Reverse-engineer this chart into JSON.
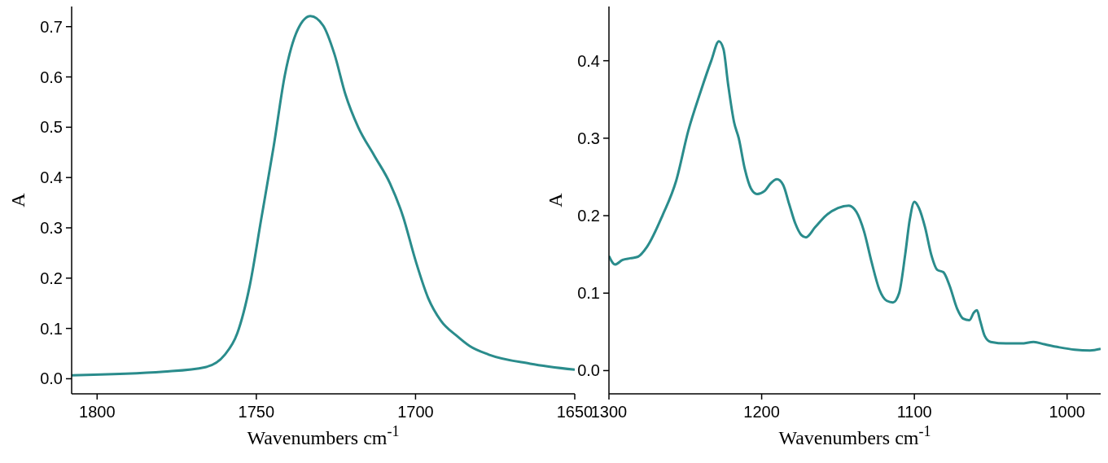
{
  "chart_data": [
    {
      "type": "line",
      "xlabel": "Wavenumbers cm$^{-1}$",
      "ylabel": "A",
      "xlim": [
        1808,
        1650
      ],
      "xticks": [
        1800,
        1750,
        1700,
        1650
      ],
      "ylim": [
        -0.03,
        0.74
      ],
      "yticks": [
        {
          "value": 0,
          "label": "0.0"
        },
        0.1,
        0.2,
        0.3,
        0.4,
        0.5,
        0.6,
        0.7
      ],
      "series": [
        {
          "color": "#2a8c8c",
          "x": [
            1808,
            1779,
            1766,
            1760,
            1756,
            1752,
            1748.5,
            1744.6,
            1741,
            1737,
            1733,
            1729,
            1725.5,
            1722,
            1718,
            1713,
            1708,
            1704,
            1700,
            1696,
            1692,
            1687,
            1683,
            1677,
            1664,
            1650
          ],
          "values": [
            0.007,
            0.014,
            0.023,
            0.047,
            0.09,
            0.187,
            0.316,
            0.46,
            0.605,
            0.694,
            0.721,
            0.702,
            0.646,
            0.565,
            0.5,
            0.444,
            0.388,
            0.324,
            0.235,
            0.16,
            0.115,
            0.085,
            0.065,
            0.048,
            0.03,
            0.018
          ]
        }
      ]
    },
    {
      "type": "line",
      "xlabel": "Wavenumbers cm$^{-1}$",
      "ylabel": "A",
      "xlim": [
        1300,
        978
      ],
      "xticks": [
        1300,
        1200,
        1100,
        1000
      ],
      "ylim": [
        -0.03,
        0.47
      ],
      "yticks": [
        {
          "value": 0,
          "label": "0.0"
        },
        0.1,
        0.2,
        0.3,
        0.4
      ],
      "series": [
        {
          "color": "#2a8c8c",
          "x": [
            1300,
            1296,
            1291,
            1286,
            1281,
            1275,
            1265,
            1256,
            1248,
            1240,
            1233,
            1228,
            1225,
            1222,
            1218,
            1215,
            1211,
            1207,
            1203,
            1198,
            1194,
            1190,
            1186,
            1182,
            1178,
            1174,
            1171,
            1165,
            1158,
            1150,
            1143,
            1138,
            1133,
            1128,
            1123,
            1118,
            1114,
            1110,
            1106,
            1103,
            1100,
            1097,
            1093,
            1089,
            1085,
            1081,
            1077,
            1072,
            1068,
            1064,
            1061,
            1059,
            1057,
            1054,
            1050,
            1040,
            1030,
            1022,
            1015,
            1005,
            995,
            985,
            978
          ],
          "values": [
            0.148,
            0.137,
            0.143,
            0.145,
            0.147,
            0.16,
            0.2,
            0.245,
            0.31,
            0.36,
            0.4,
            0.425,
            0.415,
            0.37,
            0.32,
            0.3,
            0.26,
            0.235,
            0.228,
            0.232,
            0.242,
            0.247,
            0.24,
            0.215,
            0.19,
            0.175,
            0.172,
            0.185,
            0.2,
            0.21,
            0.213,
            0.205,
            0.18,
            0.14,
            0.105,
            0.09,
            0.088,
            0.1,
            0.15,
            0.195,
            0.218,
            0.21,
            0.185,
            0.15,
            0.13,
            0.127,
            0.11,
            0.08,
            0.067,
            0.065,
            0.075,
            0.078,
            0.065,
            0.045,
            0.037,
            0.035,
            0.035,
            0.037,
            0.034,
            0.03,
            0.027,
            0.026,
            0.028
          ]
        }
      ]
    }
  ]
}
